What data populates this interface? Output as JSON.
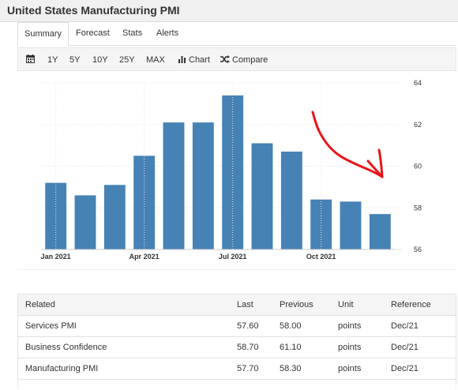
{
  "page": {
    "title": "United States Manufacturing PMI"
  },
  "tabs": [
    {
      "label": "Summary",
      "active": true
    },
    {
      "label": "Forecast",
      "active": false
    },
    {
      "label": "Stats",
      "active": false
    },
    {
      "label": "Alerts",
      "active": false
    }
  ],
  "toolbar": {
    "calendar_icon": "calendar-icon",
    "ranges": [
      "1Y",
      "5Y",
      "10Y",
      "25Y",
      "MAX"
    ],
    "chart_label": "Chart",
    "chart_icon": "bar-chart-icon",
    "compare_label": "Compare",
    "compare_icon": "shuffle-icon"
  },
  "chart_data": {
    "type": "bar",
    "categories": [
      "Jan 2021",
      "Feb 2021",
      "Mar 2021",
      "Apr 2021",
      "May 2021",
      "Jun 2021",
      "Jul 2021",
      "Aug 2021",
      "Sep 2021",
      "Oct 2021",
      "Nov 2021",
      "Dec 2021"
    ],
    "values": [
      59.2,
      58.6,
      59.1,
      60.5,
      62.1,
      62.1,
      63.4,
      61.1,
      60.7,
      58.4,
      58.3,
      57.7
    ],
    "x_tick_labels": [
      "Jan 2021",
      "Apr 2021",
      "Jul 2021",
      "Oct 2021"
    ],
    "y_ticks": [
      56,
      58,
      60,
      62,
      64
    ],
    "ylim": [
      56,
      64
    ],
    "y_axis_side": "right",
    "bar_color": "#4682b4",
    "annotation": {
      "type": "hand-drawn red arrow pointing down-right",
      "color": "#e8141b"
    }
  },
  "related": {
    "headers": [
      "Related",
      "Last",
      "Previous",
      "Unit",
      "Reference"
    ],
    "rows": [
      [
        "Services PMI",
        "57.60",
        "58.00",
        "points",
        "Dec/21"
      ],
      [
        "Business Confidence",
        "58.70",
        "61.10",
        "points",
        "Dec/21"
      ],
      [
        "Manufacturing PMI",
        "57.70",
        "58.30",
        "points",
        "Dec/21"
      ]
    ]
  }
}
